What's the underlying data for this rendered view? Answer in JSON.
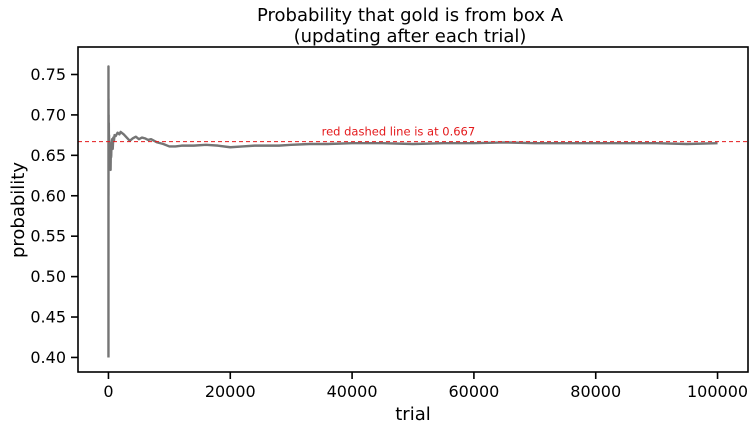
{
  "chart_data": {
    "type": "line",
    "title": "Probability that gold is from box A",
    "subtitle": "(updating after each trial)",
    "xlabel": "trial",
    "ylabel": "probability",
    "xlim": [
      -5000,
      105000
    ],
    "ylim": [
      0.382,
      0.784
    ],
    "x_ticks": [
      0,
      20000,
      40000,
      60000,
      80000,
      100000
    ],
    "x_tick_labels": [
      "0",
      "20000",
      "40000",
      "60000",
      "80000",
      "100000"
    ],
    "y_ticks": [
      0.4,
      0.45,
      0.5,
      0.55,
      0.6,
      0.65,
      0.7,
      0.75
    ],
    "y_tick_labels": [
      "0.40",
      "0.45",
      "0.50",
      "0.55",
      "0.60",
      "0.65",
      "0.70",
      "0.75"
    ],
    "grid": false,
    "reference_line": {
      "y": 0.667,
      "style": "dashed",
      "color": "#e41a1c",
      "label": "red dashed line is at 0.667"
    },
    "series": [
      {
        "color": "#757575",
        "x": [
          1,
          2,
          3,
          5,
          8,
          12,
          20,
          30,
          45,
          60,
          80,
          100,
          130,
          160,
          200,
          250,
          300,
          350,
          400,
          450,
          500,
          600,
          700,
          800,
          900,
          1000,
          1200,
          1500,
          1800,
          2000,
          2500,
          3000,
          3500,
          4000,
          4500,
          5000,
          5500,
          6000,
          6500,
          7000,
          7500,
          8000,
          9000,
          10000,
          11000,
          12000,
          14000,
          16000,
          18000,
          20000,
          22000,
          24000,
          26000,
          28000,
          30000,
          33000,
          36000,
          40000,
          45000,
          50000,
          55000,
          60000,
          65000,
          70000,
          75000,
          80000,
          85000,
          90000,
          95000,
          100000
        ],
        "y": [
          0.4,
          0.76,
          0.52,
          0.7,
          0.6,
          0.72,
          0.64,
          0.7,
          0.66,
          0.69,
          0.65,
          0.675,
          0.645,
          0.665,
          0.65,
          0.64,
          0.655,
          0.632,
          0.66,
          0.648,
          0.665,
          0.67,
          0.658,
          0.672,
          0.668,
          0.675,
          0.674,
          0.678,
          0.676,
          0.679,
          0.676,
          0.672,
          0.668,
          0.671,
          0.673,
          0.67,
          0.672,
          0.671,
          0.669,
          0.67,
          0.668,
          0.666,
          0.664,
          0.661,
          0.661,
          0.662,
          0.662,
          0.663,
          0.662,
          0.66,
          0.661,
          0.662,
          0.662,
          0.662,
          0.663,
          0.664,
          0.664,
          0.665,
          0.665,
          0.664,
          0.665,
          0.665,
          0.666,
          0.665,
          0.665,
          0.665,
          0.665,
          0.665,
          0.664,
          0.665
        ]
      }
    ]
  }
}
